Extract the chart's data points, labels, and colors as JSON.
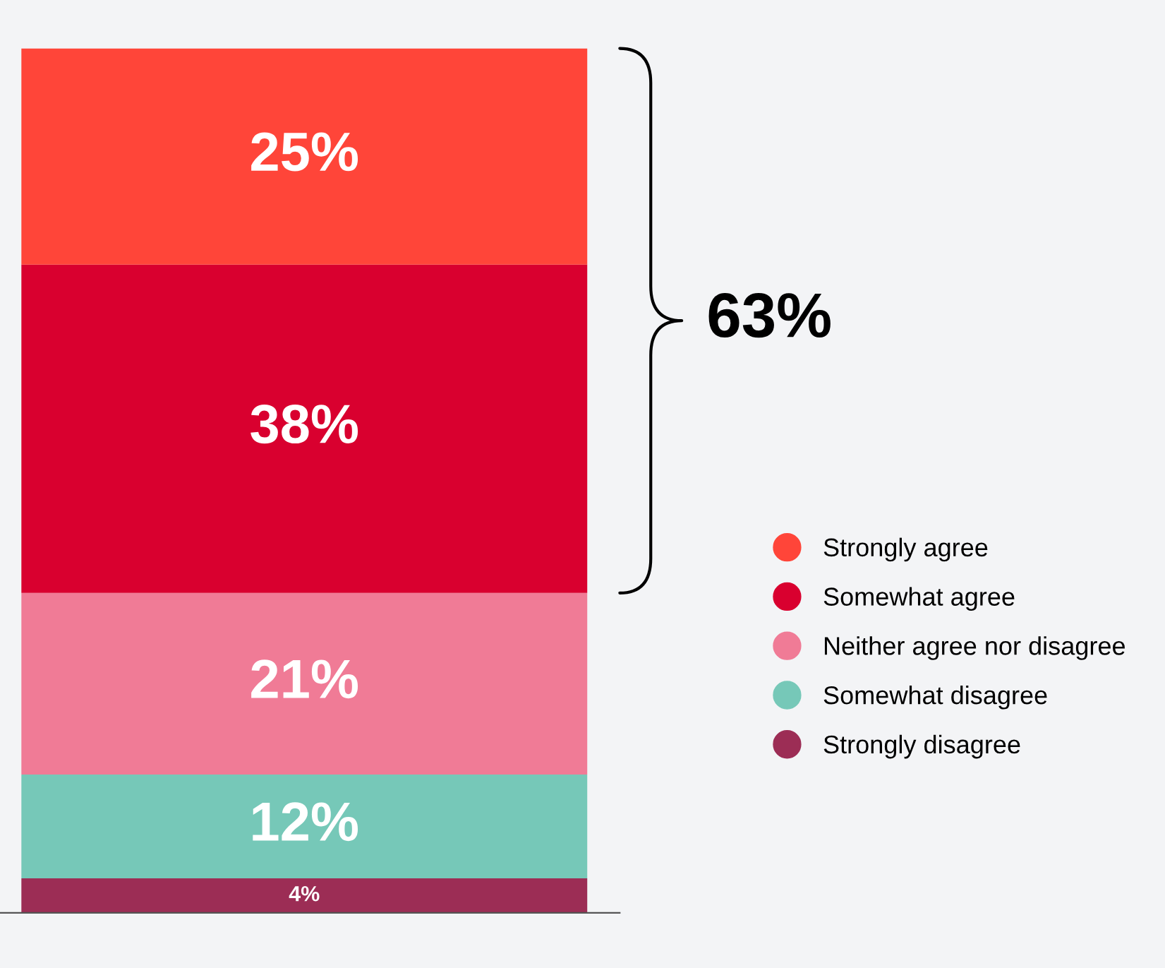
{
  "chart_data": {
    "type": "bar",
    "stacked": true,
    "categories": [
      null
    ],
    "series": [
      {
        "name": "Strongly disagree",
        "color": "#9c2d55",
        "values": [
          4
        ],
        "value_labels": [
          "4%"
        ]
      },
      {
        "name": "Somewhat disagree",
        "color": "#76c8b8",
        "values": [
          12
        ],
        "value_labels": [
          "12%"
        ]
      },
      {
        "name": "Neither agree nor disagree",
        "color": "#f07b96",
        "values": [
          21
        ],
        "value_labels": [
          "21%"
        ]
      },
      {
        "name": "Somewhat agree",
        "color": "#d9002f",
        "values": [
          38
        ],
        "value_labels": [
          "38%"
        ]
      },
      {
        "name": "Strongly agree",
        "color": "#ff4539",
        "values": [
          25
        ],
        "value_labels": [
          "25%"
        ]
      }
    ],
    "legend": "right",
    "annotations": [
      "63%"
    ]
  }
}
